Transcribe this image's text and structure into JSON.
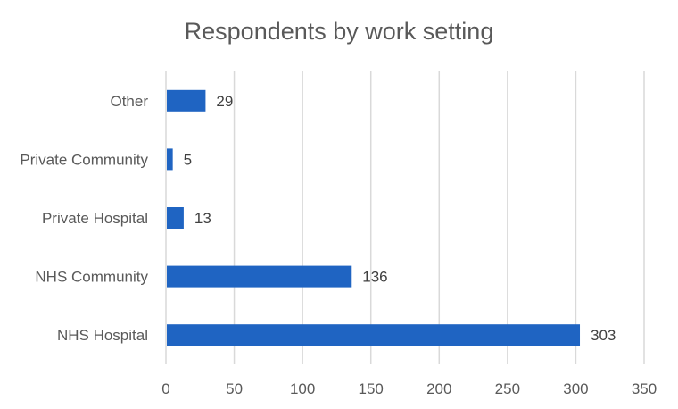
{
  "chart_data": {
    "type": "bar",
    "orientation": "horizontal",
    "title": "Respondents by work setting",
    "categories": [
      "Other",
      "Private Community",
      "Private Hospital",
      "NHS Community",
      "NHS Hospital"
    ],
    "values": [
      29,
      5,
      13,
      136,
      303
    ],
    "data_labels": [
      "29",
      "5",
      "13",
      "136",
      "303"
    ],
    "xlim": [
      0,
      350
    ],
    "x_ticks": [
      0,
      50,
      100,
      150,
      200,
      250,
      300,
      350
    ],
    "x_tick_labels": [
      "0",
      "50",
      "100",
      "150",
      "200",
      "250",
      "300",
      "350"
    ],
    "xlabel": "",
    "ylabel": "",
    "grid": "vertical",
    "legend": "none",
    "bar_color": "#1f64c2",
    "grid_color": "#d9d9d9",
    "text_color": "#595959"
  }
}
